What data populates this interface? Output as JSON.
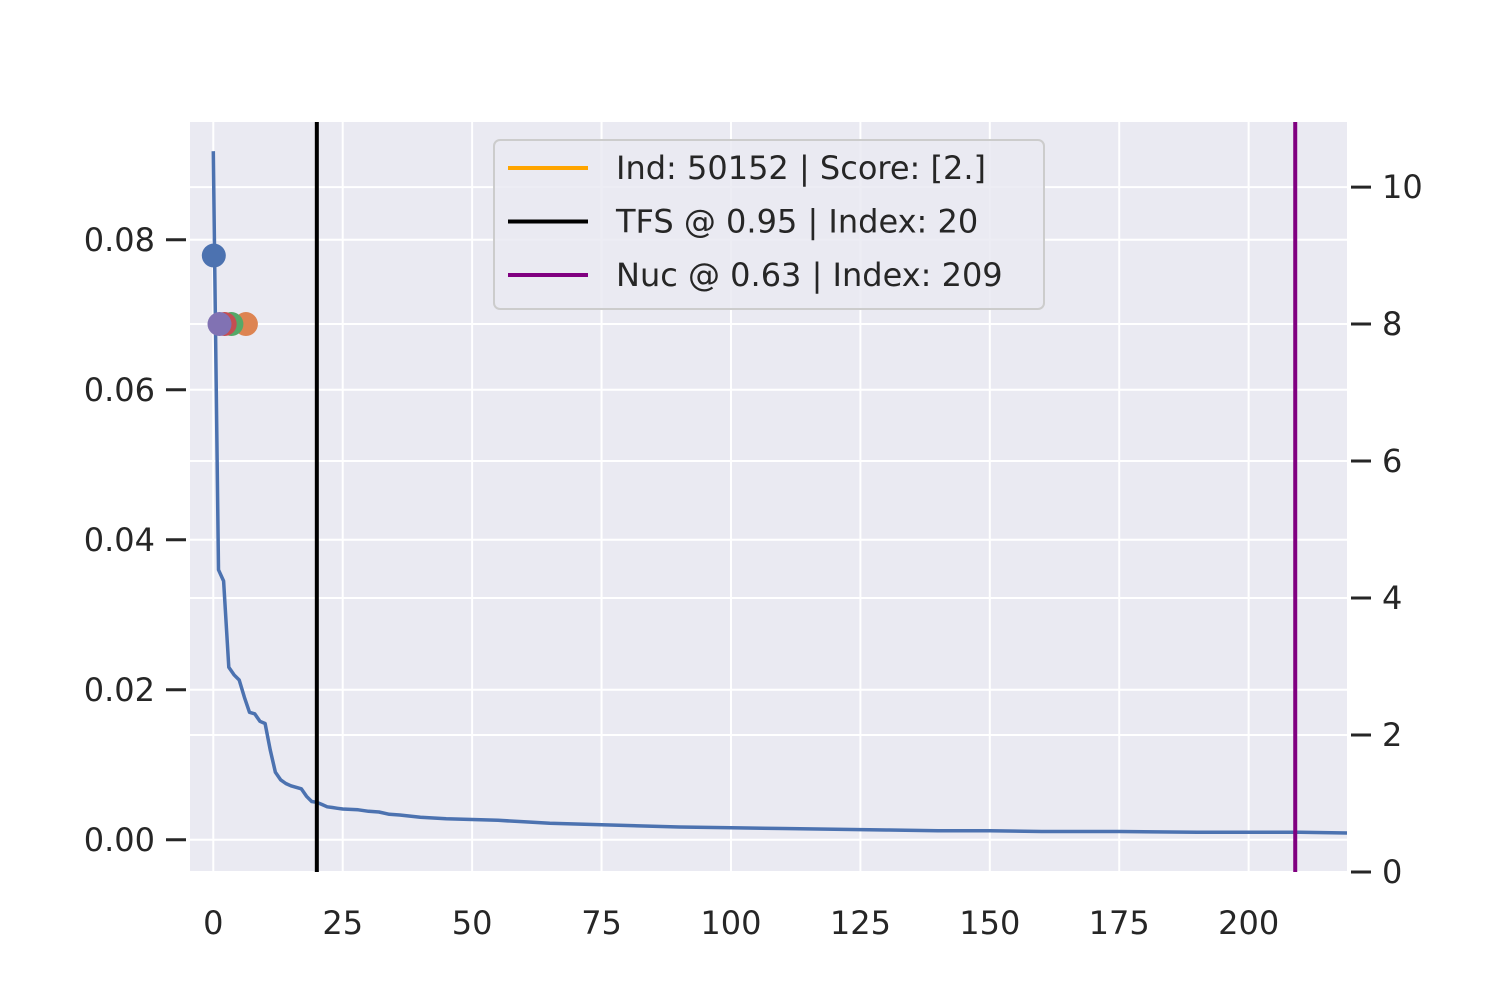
{
  "chart_data": {
    "type": "line",
    "title": "",
    "xlabel": "",
    "ylabel": "",
    "y2label": "",
    "xlim": [
      -4.5,
      219
    ],
    "ylim": [
      -0.0043,
      0.0957
    ],
    "y2lim": [
      0,
      10.95
    ],
    "x_ticks": [
      0,
      25,
      50,
      75,
      100,
      125,
      150,
      175,
      200
    ],
    "y_ticks": [
      0.0,
      0.02,
      0.04,
      0.06,
      0.08
    ],
    "y_tick_labels": [
      "0.00",
      "0.02",
      "0.04",
      "0.06",
      "0.08"
    ],
    "y2_ticks": [
      0,
      2,
      4,
      6,
      8,
      10
    ],
    "grid": true,
    "legend_position": "top-center",
    "series": [
      {
        "name": "",
        "color": "#4c72b0",
        "x": [
          0,
          1,
          2,
          3,
          4,
          5,
          6,
          7,
          8,
          9,
          10,
          11,
          12,
          13,
          14,
          15,
          16,
          17,
          18,
          19,
          20,
          21,
          22,
          23,
          24,
          25,
          28,
          30,
          32,
          34,
          36,
          40,
          45,
          50,
          55,
          60,
          65,
          70,
          75,
          80,
          90,
          100,
          110,
          120,
          130,
          140,
          150,
          160,
          175,
          190,
          200,
          210,
          219
        ],
        "y": [
          0.0918,
          0.036,
          0.0345,
          0.023,
          0.022,
          0.0213,
          0.019,
          0.017,
          0.0168,
          0.0158,
          0.0155,
          0.012,
          0.009,
          0.008,
          0.0075,
          0.0072,
          0.007,
          0.0068,
          0.0058,
          0.0051,
          0.005,
          0.0047,
          0.0044,
          0.0043,
          0.0042,
          0.0041,
          0.004,
          0.0038,
          0.0037,
          0.0034,
          0.0033,
          0.003,
          0.0028,
          0.0027,
          0.0026,
          0.0024,
          0.0022,
          0.0021,
          0.002,
          0.0019,
          0.0017,
          0.0016,
          0.0015,
          0.0014,
          0.0013,
          0.0012,
          0.0012,
          0.0011,
          0.0011,
          0.001,
          0.001,
          0.001,
          0.0009
        ]
      }
    ],
    "points": [
      {
        "x": 0.1,
        "y2": 9.0,
        "color": "#4c72b0"
      },
      {
        "x": 6.3,
        "y2": 8.0,
        "color": "#dd8452"
      },
      {
        "x": 3.5,
        "y2": 8.0,
        "color": "#55a868"
      },
      {
        "x": 2.2,
        "y2": 8.0,
        "color": "#c44e52"
      },
      {
        "x": 1.2,
        "y2": 8.0,
        "color": "#8172b3"
      }
    ],
    "vlines": [
      {
        "x": 20,
        "color": "#000000"
      },
      {
        "x": 209,
        "color": "#800080"
      }
    ],
    "legend": [
      {
        "label": "Ind: 50152 | Score: [2.]",
        "color": "#ffa500"
      },
      {
        "label": "TFS @ 0.95 | Index: 20",
        "color": "#000000"
      },
      {
        "label": "Nuc @ 0.63 | Index: 209",
        "color": "#800080"
      }
    ]
  }
}
